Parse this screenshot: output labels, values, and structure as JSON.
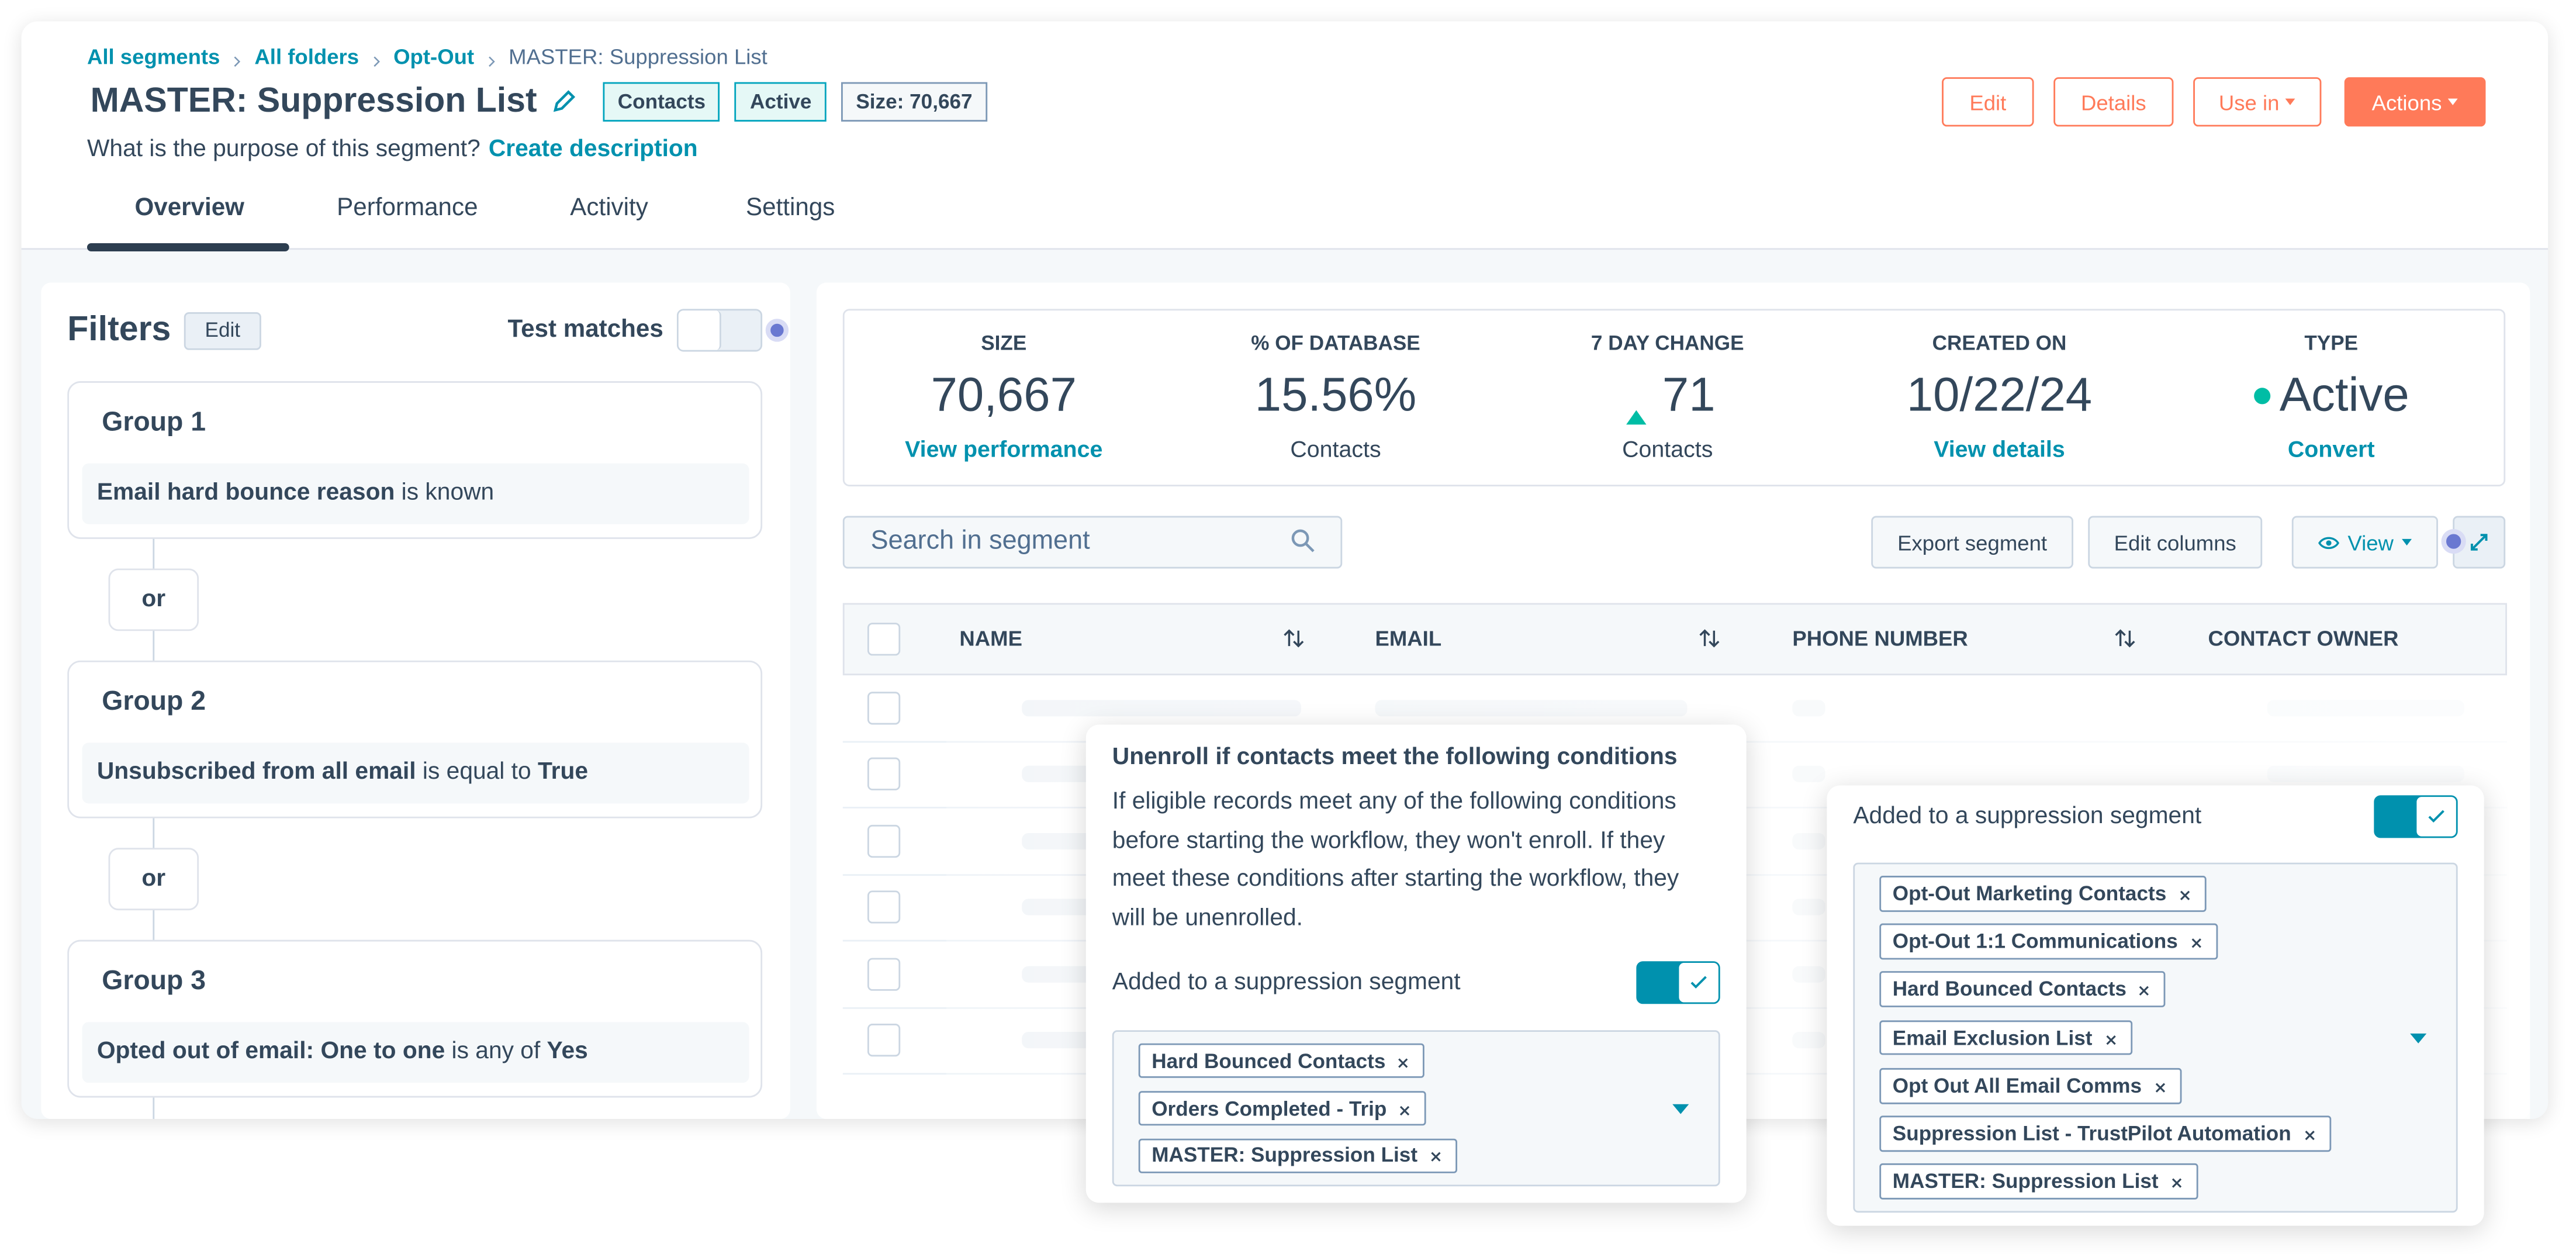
{
  "breadcrumb": [
    "All segments",
    "All folders",
    "Opt-Out",
    "MASTER: Suppression List"
  ],
  "header": {
    "title": "MASTER: Suppression List",
    "badges": [
      "Contacts",
      "Active",
      "Size: 70,667"
    ],
    "purpose": "What is the purpose of this segment?",
    "create_description": "Create description",
    "buttons": [
      "Edit",
      "Details",
      "Use in",
      "Actions"
    ]
  },
  "tabs": [
    "Overview",
    "Performance",
    "Activity",
    "Settings"
  ],
  "filters": {
    "title": "Filters",
    "edit": "Edit",
    "test_matches": "Test matches",
    "connector": "or",
    "groups": [
      {
        "name": "Group 1",
        "field": "Email hard bounce reason",
        "operator": "is known"
      },
      {
        "name": "Group 2",
        "field": "Unsubscribed from all email",
        "operator": "is equal to",
        "value": "True"
      },
      {
        "name": "Group 3",
        "field": "Opted out of email: One to one",
        "operator": "is any of",
        "value": "Yes"
      }
    ]
  },
  "stats": [
    {
      "label": "SIZE",
      "value": "70,667",
      "sub": "View performance",
      "link": true
    },
    {
      "label": "% OF DATABASE",
      "value": "15.56%",
      "sub": "Contacts",
      "link": false
    },
    {
      "label": "7 DAY CHANGE",
      "value": "71",
      "sub": "Contacts",
      "link": false
    },
    {
      "label": "CREATED ON",
      "value": "10/22/24",
      "sub": "View details",
      "link": true
    },
    {
      "label": "TYPE",
      "value": "Active",
      "sub": "Convert",
      "link": true
    }
  ],
  "toolbar": {
    "search": "Search in segment",
    "buttons": [
      "Export segment",
      "Edit columns",
      "View"
    ]
  },
  "table": {
    "columns": [
      "NAME",
      "EMAIL",
      "PHONE NUMBER",
      "CONTACT OWNER"
    ]
  },
  "popup_left": {
    "title": "Unenroll if contacts meet the following conditions",
    "body": "If eligible records meet any of the following conditions before starting the workflow, they won't enroll. If they meet these conditions after starting the workflow, they will be unenrolled.",
    "toggle_label": "Added to a suppression segment",
    "tags": [
      "Hard Bounced Contacts",
      "Orders Completed - Trip",
      "MASTER: Suppression List"
    ]
  },
  "popup_right": {
    "toggle_label": "Added to a suppression segment",
    "tags": [
      "Opt-Out Marketing Contacts",
      "Opt-Out 1:1 Communications",
      "Hard Bounced Contacts",
      "Email Exclusion List",
      "Opt Out All Email Comms",
      "Suppression List - TrustPilot Automation",
      "MASTER: Suppression List"
    ]
  }
}
